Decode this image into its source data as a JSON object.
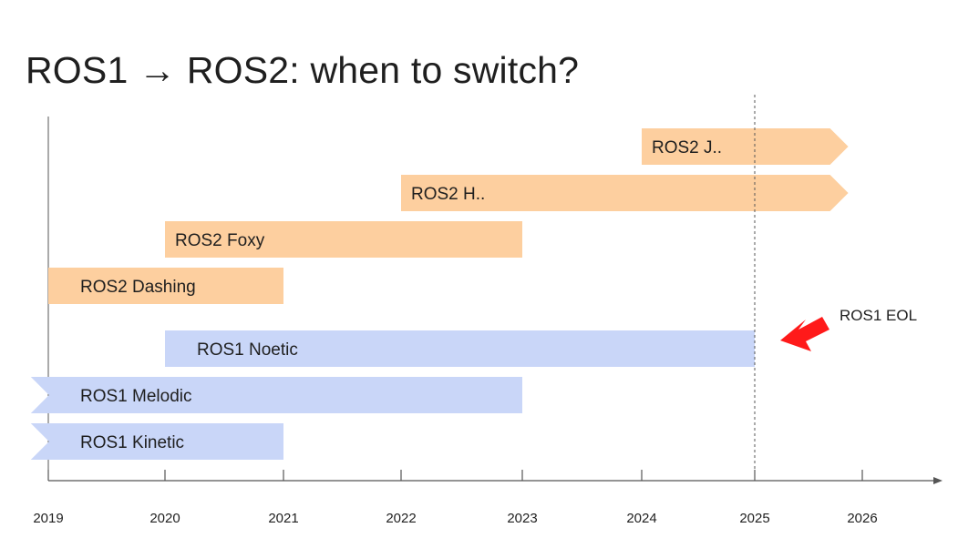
{
  "title": "ROS1 → ROS2: when to switch?",
  "colors": {
    "ros2": "#fdcf9f",
    "ros1": "#c9d6f8",
    "axis": "#555555",
    "marker": "#ff1a1a"
  },
  "timeline": {
    "year_ticks": [
      "2019",
      "2020",
      "2021",
      "2022",
      "2023",
      "2024",
      "2025",
      "2026"
    ],
    "releases": [
      {
        "name": "ROS2 J..",
        "family": "ros2",
        "start": 2024,
        "end": 2025.7,
        "open_start": false,
        "open_end": true
      },
      {
        "name": "ROS2 H..",
        "family": "ros2",
        "start": 2022,
        "end": 2025.7,
        "open_start": false,
        "open_end": true
      },
      {
        "name": "ROS2 Foxy",
        "family": "ros2",
        "start": 2020,
        "end": 2023,
        "open_start": false,
        "open_end": false
      },
      {
        "name": "ROS2 Dashing",
        "family": "ros2",
        "start": 2019,
        "end": 2021,
        "open_start": false,
        "open_end": false
      },
      {
        "name": "ROS1 Noetic",
        "family": "ros1",
        "start": 2020,
        "end": 2025,
        "open_start": false,
        "open_end": false
      },
      {
        "name": "ROS1 Melodic",
        "family": "ros1",
        "start": 2018.85,
        "end": 2023,
        "open_start": true,
        "open_end": false
      },
      {
        "name": "ROS1 Kinetic",
        "family": "ros1",
        "start": 2018.85,
        "end": 2021,
        "open_start": true,
        "open_end": false
      }
    ],
    "eol": {
      "label": "ROS1 EOL",
      "year": 2025
    }
  }
}
